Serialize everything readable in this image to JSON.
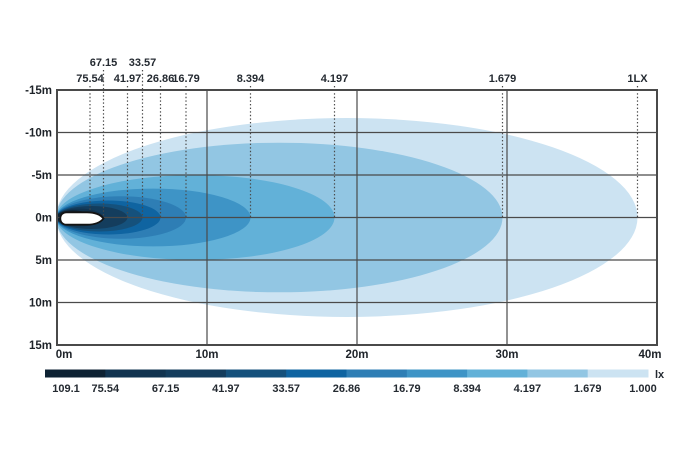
{
  "chart_data": {
    "type": "heatmap",
    "subtype": "isolux-beam-pattern",
    "unit": "lx",
    "x_axis": {
      "ticks": [
        "0m",
        "10m",
        "20m",
        "30m",
        "40m"
      ],
      "tick_values": [
        0,
        10,
        20,
        30,
        40
      ],
      "range_m": [
        0,
        40
      ],
      "grid_values": [
        10,
        20,
        30
      ]
    },
    "y_axis": {
      "ticks": [
        "-15m",
        "-10m",
        "-5m",
        "0m",
        "5m",
        "10m",
        "15m"
      ],
      "tick_values": [
        -15,
        -10,
        -5,
        0,
        5,
        10,
        15
      ],
      "range_m": [
        -15,
        15
      ],
      "grid_values": [
        -10,
        -5,
        0,
        5,
        10
      ]
    },
    "grid": true,
    "legend": {
      "position": "bottom",
      "values": [
        "109.1",
        "75.54",
        "67.15",
        "41.97",
        "33.57",
        "26.86",
        "16.79",
        "8.394",
        "4.197",
        "1.679",
        "1.000"
      ],
      "unit_label": "lx",
      "colors": [
        "#0e2233",
        "#123450",
        "#143d5d",
        "#15517c",
        "#0f64a1",
        "#2e7eb5",
        "#3e94c6",
        "#62b1d8",
        "#92c6e3",
        "#cce3f2"
      ]
    },
    "zones": [
      {
        "lux": "75.54",
        "label": "75.54",
        "label_row": 2,
        "reach_m": 2.2,
        "half_width_m": 0.85,
        "color_index": 0
      },
      {
        "lux": "67.15",
        "label": "67.15",
        "label_row": 1,
        "reach_m": 3.1,
        "half_width_m": 1.05,
        "color_index": 1
      },
      {
        "lux": "41.97",
        "label": "41.97",
        "label_row": 2,
        "reach_m": 4.7,
        "half_width_m": 1.35,
        "color_index": 2
      },
      {
        "lux": "33.57",
        "label": "33.57",
        "label_row": 1,
        "reach_m": 5.7,
        "half_width_m": 1.65,
        "color_index": 3
      },
      {
        "lux": "26.86",
        "label": "26.86",
        "label_row": 2,
        "reach_m": 6.9,
        "half_width_m": 2.0,
        "color_index": 4
      },
      {
        "lux": "16.79",
        "label": "16.79",
        "label_row": 2,
        "reach_m": 8.6,
        "half_width_m": 2.5,
        "color_index": 5
      },
      {
        "lux": "8.394",
        "label": "8.394",
        "label_row": 2,
        "reach_m": 12.9,
        "half_width_m": 3.4,
        "color_index": 6
      },
      {
        "lux": "4.197",
        "label": "4.197",
        "label_row": 2,
        "reach_m": 18.5,
        "half_width_m": 5.0,
        "color_index": 7
      },
      {
        "lux": "1.679",
        "label": "1.679",
        "label_row": 2,
        "reach_m": 29.7,
        "half_width_m": 8.8,
        "color_index": 8
      },
      {
        "lux": "1.000",
        "label": "1LX",
        "label_row": 2,
        "reach_m": 38.7,
        "half_width_m": 11.7,
        "color_index": 9
      }
    ]
  },
  "colors": {
    "background": "#ffffff",
    "frame": "#4a4a4a",
    "grid": "#4a4a4a",
    "dotted_line": "#4a4a4a",
    "text": "#242a31",
    "lamp_fill": "#ffffff",
    "lamp_stroke": "#141414"
  }
}
